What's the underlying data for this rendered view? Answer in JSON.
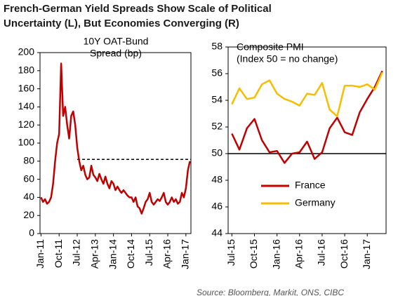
{
  "title": [
    "French-German Yield Spreads Show Scale of Political",
    "Uncertainty (L), But Economies Converging (R)"
  ],
  "source": "Source: Bloomberg, Markit, ONS, CIBC",
  "chart_data": [
    {
      "type": "line",
      "title": [
        "10Y OAT-Bund",
        "Spread (bp)"
      ],
      "categories": [
        "Jan-11",
        null,
        null,
        null,
        null,
        null,
        null,
        null,
        null,
        "Oct-11",
        null,
        null,
        null,
        null,
        null,
        null,
        null,
        null,
        "Jul-12",
        null,
        null,
        null,
        null,
        null,
        null,
        null,
        null,
        "Apr-13",
        null,
        null,
        null,
        null,
        null,
        null,
        null,
        null,
        "Jan-14",
        null,
        null,
        null,
        null,
        null,
        null,
        null,
        null,
        "Oct-14",
        null,
        null,
        null,
        null,
        null,
        null,
        null,
        null,
        "Jul-15",
        null,
        null,
        null,
        null,
        null,
        null,
        null,
        null,
        "Apr-16",
        null,
        null,
        null,
        null,
        null,
        null,
        null,
        null,
        "Jan-17",
        null,
        null
      ],
      "values": [
        40,
        35,
        38,
        33,
        35,
        40,
        55,
        80,
        100,
        110,
        188,
        130,
        140,
        120,
        105,
        130,
        135,
        120,
        95,
        80,
        70,
        75,
        65,
        60,
        62,
        75,
        65,
        62,
        58,
        66,
        60,
        55,
        63,
        55,
        50,
        58,
        55,
        48,
        52,
        48,
        45,
        48,
        45,
        42,
        40,
        40,
        35,
        40,
        30,
        28,
        22,
        28,
        35,
        38,
        45,
        35,
        32,
        35,
        38,
        36,
        40,
        45,
        35,
        32,
        35,
        40,
        35,
        38,
        33,
        35,
        45,
        40,
        50,
        70,
        80
      ],
      "color": "#c00000",
      "hline": {
        "value": 82,
        "from": "Jul-12",
        "style": "dashed"
      },
      "ylim": [
        0,
        200
      ],
      "yticks": [
        0,
        20,
        40,
        60,
        80,
        100,
        120,
        140,
        160,
        180,
        200
      ]
    },
    {
      "type": "line",
      "title": [
        "Composite PMI",
        "(Index 50 = no change)"
      ],
      "categories": [
        "Jul-15",
        null,
        null,
        "Oct-15",
        null,
        null,
        "Jan-16",
        null,
        null,
        "Apr-16",
        null,
        null,
        "Jul-16",
        null,
        null,
        "Oct-16",
        null,
        null,
        "Jan-17",
        null,
        null
      ],
      "series": [
        {
          "name": "France",
          "color": "#c00000",
          "values": [
            51.5,
            50.3,
            51.9,
            52.6,
            51.0,
            50.1,
            50.2,
            49.3,
            50.0,
            50.1,
            50.9,
            49.6,
            50.1,
            51.9,
            52.7,
            51.6,
            51.4,
            53.1,
            54.1,
            55.0,
            56.2
          ]
        },
        {
          "name": "Germany",
          "color": "#f5be00",
          "values": [
            53.7,
            54.9,
            54.1,
            54.2,
            55.2,
            55.5,
            54.5,
            54.1,
            53.9,
            53.6,
            54.5,
            54.4,
            55.3,
            53.3,
            52.8,
            55.1,
            55.1,
            55.0,
            55.2,
            54.8,
            56.1
          ]
        }
      ],
      "hline": {
        "value": 50,
        "from": "Jul-15",
        "style": "solid"
      },
      "ylim": [
        44,
        58
      ],
      "yticks": [
        44,
        46,
        48,
        50,
        52,
        54,
        56,
        58
      ]
    }
  ]
}
